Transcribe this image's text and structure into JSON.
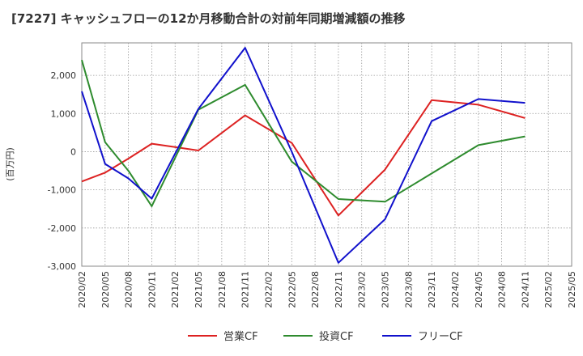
{
  "title": "[7227]  キャッシュフローの12か月移動合計の対前年同期増減額の推移",
  "chart_data": {
    "type": "line",
    "title": "[7227]  キャッシュフローの12か月移動合計の対前年同期増減額の推移",
    "xlabel": "",
    "ylabel": "(百万円)",
    "ylim": [
      -3000,
      2850
    ],
    "yticks": [
      -3000,
      -2000,
      -1000,
      0,
      1000,
      2000
    ],
    "ytick_labels": [
      "-3,000",
      "-2,000",
      "-1,000",
      "0",
      "1,000",
      "2,000"
    ],
    "categories": [
      "2020/02",
      "2020/05",
      "2020/08",
      "2020/11",
      "2021/02",
      "2021/05",
      "2021/08",
      "2021/11",
      "2022/02",
      "2022/05",
      "2022/08",
      "2022/11",
      "2023/02",
      "2023/05",
      "2023/08",
      "2023/11",
      "2024/02",
      "2024/05",
      "2024/08",
      "2024/11",
      "2025/02",
      "2025/05"
    ],
    "grid": true,
    "legend_position": "bottom",
    "series": [
      {
        "name": "営業CF",
        "color": "#dd2222",
        "values": [
          -780,
          -550,
          -180,
          210,
          120,
          30,
          null,
          950,
          null,
          230,
          null,
          -1670,
          null,
          -470,
          null,
          1350,
          null,
          1230,
          null,
          880,
          null,
          null
        ]
      },
      {
        "name": "投資CF",
        "color": "#2e8b2e",
        "values": [
          2400,
          250,
          -500,
          -1430,
          null,
          1100,
          null,
          1750,
          null,
          -260,
          null,
          -1240,
          null,
          -1310,
          null,
          -570,
          null,
          170,
          null,
          400,
          null,
          null
        ]
      },
      {
        "name": "フリーCF",
        "color": "#1111cc",
        "values": [
          1580,
          -320,
          -700,
          -1230,
          null,
          1120,
          null,
          2720,
          null,
          0,
          null,
          -2910,
          null,
          -1770,
          null,
          800,
          null,
          1380,
          null,
          1280,
          null,
          null
        ]
      }
    ]
  }
}
